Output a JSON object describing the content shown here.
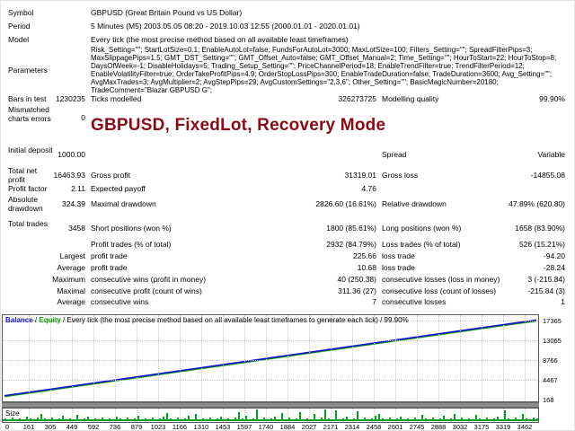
{
  "report": {
    "title": "GBPUSD, FixedLot, Recovery Mode",
    "rows": [
      {
        "c1": "Symbol",
        "wide": "GBPUSD (Great Britain Pound vs US Dollar)"
      },
      {
        "c1": "Period",
        "wide": "5 Minutes (M5) 2003.05.05 08:20 - 2019.10.03 12:55 (2000.01.01 - 2020.01.01)"
      },
      {
        "c1": "Model",
        "wide": "Every tick (the most precise method based on all available least timeframes)"
      },
      {
        "c1": "Parameters",
        "param_lines": [
          "Risk_Setting=\"\"; StartLotSize=0.1; EnableAutoLot=false; FundsForAutoLot=3000; MaxLotSize=100; Filters_Setting=\"\"; SpreadFilterPips=3;",
          "MaxSlippagePips=1.5; GMT_DST_Setting=\"\"; GMT_Offset_Auto=false; GMT_Offset_Manual=2; Time_Setting=\"\"; HourToStart=22; HourToStop=8;",
          "DaysOfWeek=-1; DisableHolidays=5; Trading_Setup_Setting=\"\"; PriceChannelPeriod=18; EnableTrendFilter=true; TrendFilterPeriod=12;",
          "EnableVolatilityFilter=true; OrderTakeProfitPips=4.9; OrderStopLossPips=300; EnableTradeDuration=false; TradeDuration=3600; Avg_Setting=\"\";",
          "AvgMaxTrades=3; AvgMultiplier=2; AvgStepPips=29; AvgCustomSettings=\"2,3,6\"; Other_Setting=\"\"; BasicMagicNumber=20180;",
          "TradeComment=\"Blazar GBPUSD G\";"
        ]
      },
      {
        "c1": "Bars in test",
        "c2": "1230235",
        "c3": "Ticks modelled",
        "c4": "326273725",
        "c5": "Modelling quality",
        "c6": "99.90%"
      },
      {
        "c1": "Mismatched charts errors",
        "c2": "0"
      },
      {
        "c1": "Initial deposit",
        "c2": "1000.00",
        "c5": "Spread",
        "c6": "Variable"
      },
      {
        "c1": "Total net profit",
        "c2": "16463.93",
        "c3": "Gross profit",
        "c4": "31319.01",
        "c5": "Gross loss",
        "c6": "-14855.08"
      },
      {
        "c1": "Profit factor",
        "c2": "2.11",
        "c3": "Expected payoff",
        "c4": "4.76"
      },
      {
        "c1": "Absolute drawdown",
        "c2": "324.39",
        "c3": "Maximal drawdown",
        "c4": "2826.60 (16.61%)",
        "c5": "Relative drawdown",
        "c6": "47.89% (620.80)"
      },
      {
        "c1": "Total trades",
        "c2": "3458",
        "c3": "Short positions (won %)",
        "c4": "1800 (85.61%)",
        "c5": "Long positions (won %)",
        "c6": "1658 (83.90%)"
      },
      {
        "c3": "Profit trades (% of total)",
        "c4": "2932 (84.79%)",
        "c5": "Loss trades (% of total)",
        "c6": "526 (15.21%)"
      },
      {
        "c2": "Largest",
        "c3": "profit trade",
        "c4": "225.66",
        "c5": "loss trade",
        "c6": "-94.20"
      },
      {
        "c2": "Average",
        "c3": "profit trade",
        "c4": "10.68",
        "c5": "loss trade",
        "c6": "-28.24"
      },
      {
        "c2": "Maximum",
        "c3": "consecutive wins (profit in money)",
        "c4": "40 (250.38)",
        "c5": "consecutive losses (loss in money)",
        "c6": "3 (-215.84)"
      },
      {
        "c2": "Maximal",
        "c3": "consecutive profit (count of wins)",
        "c4": "311.36 (27)",
        "c5": "consecutive loss (count of losses)",
        "c6": "-215.84 (3)"
      },
      {
        "c2": "Average",
        "c3": "consecutive wins",
        "c4": "7",
        "c5": "consecutive losses",
        "c6": "1"
      }
    ]
  },
  "chart_data": {
    "type": "line",
    "legend": {
      "balance_label": "Balance",
      "separator": " / ",
      "equity_label": "Equity",
      "rest": " / Every tick (the most precise method based on all available least timeframes to generate each tick) / 99.90%"
    },
    "colors": {
      "balance": "#1414cc",
      "equity": "#00a000",
      "size_bars": "#00a321",
      "title_red": "#8b0b14",
      "grid": "#c9c9c9",
      "divider": "#8e8e8e"
    },
    "y_ticks": [
      168,
      4467,
      8766,
      13065,
      17365
    ],
    "x_ticks": [
      0,
      161,
      305,
      449,
      592,
      736,
      879,
      1023,
      1166,
      1310,
      1453,
      1597,
      1740,
      1884,
      2027,
      2171,
      2314,
      2458,
      2601,
      2745,
      2888,
      3032,
      3175,
      3319,
      3462
    ],
    "xlim": [
      0,
      3462
    ],
    "ylim": [
      168,
      17560
    ],
    "balance_series": {
      "name": "Balance",
      "x": [
        0,
        161,
        449,
        736,
        1023,
        1310,
        1597,
        1740,
        1884,
        2027,
        2171,
        2314,
        2601,
        2888,
        3175,
        3462
      ],
      "y": [
        1000,
        1770,
        3130,
        4500,
        5870,
        7240,
        8600,
        9290,
        9980,
        10660,
        11350,
        12030,
        13400,
        14760,
        16130,
        17464
      ]
    },
    "size_panel_label": "Size",
    "size_bars": [
      2,
      1,
      3,
      1,
      2,
      1,
      4,
      2,
      1,
      3,
      7,
      2,
      1,
      3,
      1,
      2,
      5,
      1,
      2,
      1,
      6,
      1,
      2,
      4,
      1,
      2,
      1,
      3,
      1,
      2,
      1,
      4,
      2,
      1,
      3,
      1,
      2,
      5,
      1,
      2,
      1,
      3,
      1,
      2,
      4,
      8,
      2,
      1,
      3,
      1,
      2,
      5,
      1,
      7,
      1,
      2,
      1,
      3,
      1,
      2,
      4,
      1,
      2,
      1,
      3,
      9,
      2,
      5,
      1,
      2,
      12,
      1,
      3,
      1,
      2,
      4,
      1,
      8,
      1,
      3,
      1,
      2,
      9,
      1,
      2,
      1,
      7,
      1,
      3,
      12,
      2,
      1,
      11,
      1,
      2,
      4,
      1,
      2,
      10,
      1,
      3,
      1,
      2,
      5,
      7,
      2,
      1,
      3,
      1,
      2,
      4,
      1,
      2,
      1,
      3,
      1,
      6,
      2,
      1,
      3,
      1,
      2,
      5,
      1,
      2,
      7,
      1,
      3,
      1,
      2,
      1,
      6,
      2,
      1,
      3,
      1,
      2,
      4,
      1,
      11,
      2,
      1,
      3,
      1,
      7,
      2,
      1,
      3,
      2
    ]
  }
}
